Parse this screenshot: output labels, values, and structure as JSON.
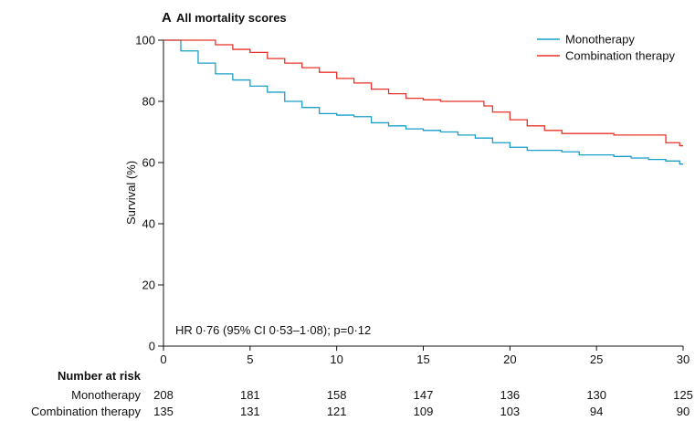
{
  "chart_data": {
    "type": "line",
    "panel_label": "A",
    "title": "All mortality scores",
    "ylabel": "Survival (%)",
    "xlabel": "",
    "xlim": [
      0,
      30
    ],
    "ylim": [
      0,
      100
    ],
    "x_ticks": [
      0,
      5,
      10,
      15,
      20,
      25,
      30
    ],
    "y_ticks": [
      0,
      20,
      40,
      60,
      80,
      100
    ],
    "grid": false,
    "legend_position": "top-right",
    "annotation": "HR 0·76 (95% CI 0·53–1·08); p=0·12",
    "series": [
      {
        "name": "Monotherapy",
        "color": "#1a9fc9",
        "step": true,
        "points": [
          [
            0,
            100
          ],
          [
            1,
            96.5
          ],
          [
            2,
            92.5
          ],
          [
            3,
            89
          ],
          [
            4,
            87
          ],
          [
            5,
            85
          ],
          [
            6,
            83
          ],
          [
            7,
            80
          ],
          [
            8,
            78
          ],
          [
            9,
            76
          ],
          [
            10,
            75.5
          ],
          [
            11,
            75
          ],
          [
            12,
            73
          ],
          [
            13,
            72
          ],
          [
            14,
            71
          ],
          [
            15,
            70.5
          ],
          [
            16,
            70
          ],
          [
            17,
            69
          ],
          [
            18,
            68
          ],
          [
            19,
            66.5
          ],
          [
            20,
            65
          ],
          [
            21,
            64
          ],
          [
            22,
            64
          ],
          [
            23,
            63.5
          ],
          [
            24,
            62.5
          ],
          [
            25,
            62.5
          ],
          [
            26,
            62
          ],
          [
            27,
            61.5
          ],
          [
            28,
            61
          ],
          [
            29,
            60.5
          ],
          [
            29.8,
            59.5
          ]
        ]
      },
      {
        "name": "Combination therapy",
        "color": "#e8332a",
        "step": true,
        "points": [
          [
            0,
            100
          ],
          [
            3,
            98.5
          ],
          [
            4,
            97
          ],
          [
            5,
            96
          ],
          [
            6,
            94
          ],
          [
            7,
            92.5
          ],
          [
            8,
            91
          ],
          [
            9,
            89.5
          ],
          [
            10,
            87.5
          ],
          [
            11,
            86
          ],
          [
            12,
            84
          ],
          [
            13,
            82.5
          ],
          [
            14,
            81
          ],
          [
            15,
            80.5
          ],
          [
            16,
            80
          ],
          [
            17,
            80
          ],
          [
            18,
            80
          ],
          [
            18.5,
            78.5
          ],
          [
            19,
            76.5
          ],
          [
            20,
            74
          ],
          [
            21,
            72
          ],
          [
            22,
            70.5
          ],
          [
            23,
            69.5
          ],
          [
            24,
            69.5
          ],
          [
            25,
            69.5
          ],
          [
            26,
            69
          ],
          [
            27,
            69
          ],
          [
            28,
            69
          ],
          [
            29,
            66.5
          ],
          [
            29.8,
            65.5
          ]
        ]
      }
    ],
    "risk_table": {
      "title": "Number at risk",
      "times": [
        0,
        5,
        10,
        15,
        20,
        25,
        30
      ],
      "rows": [
        {
          "label": "Monotherapy",
          "values": [
            208,
            181,
            158,
            147,
            136,
            130,
            125
          ]
        },
        {
          "label": "Combination therapy",
          "values": [
            135,
            131,
            121,
            109,
            103,
            94,
            90
          ]
        }
      ]
    }
  }
}
